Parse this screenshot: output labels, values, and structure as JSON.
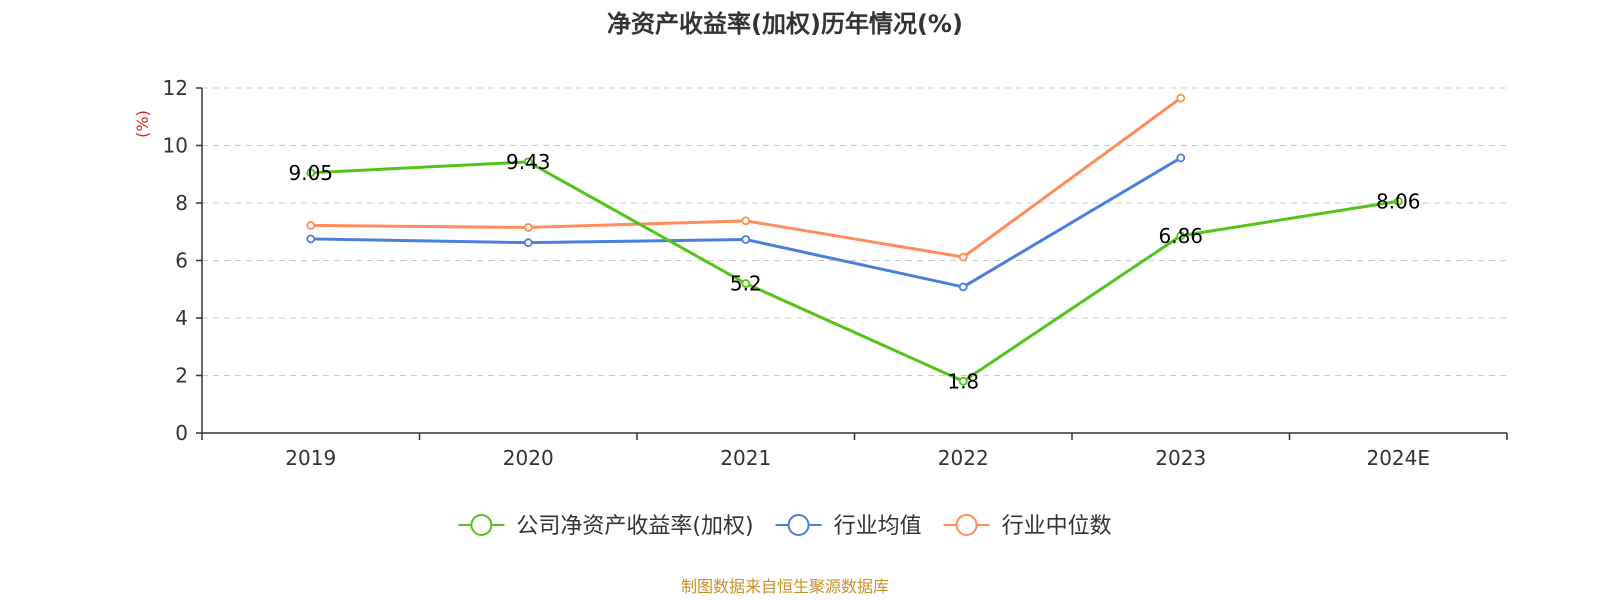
{
  "chart_data": {
    "type": "line",
    "title": "净资产收益率(加权)历年情况(%)",
    "ylabel": "(%)",
    "xlabel": "",
    "categories": [
      "2019",
      "2020",
      "2021",
      "2022",
      "2023",
      "2024E"
    ],
    "ylim": [
      0,
      12
    ],
    "yticks": [
      0,
      2,
      4,
      6,
      8,
      10,
      12
    ],
    "grid": true,
    "legend_position": "bottom",
    "series": [
      {
        "name": "公司净资产收益率(加权)",
        "color": "#52c41a",
        "values": [
          9.05,
          9.43,
          5.2,
          1.8,
          6.86,
          8.06
        ],
        "labels": [
          "9.05",
          "9.43",
          "5.2",
          "1.8",
          "6.86",
          "8.06"
        ]
      },
      {
        "name": "行业均值",
        "color": "#4a7fdf",
        "values": [
          6.75,
          6.62,
          6.73,
          5.08,
          9.57,
          null
        ]
      },
      {
        "name": "行业中位数",
        "color": "#ff8c5a",
        "values": [
          7.22,
          7.15,
          7.38,
          6.12,
          11.65,
          null
        ]
      }
    ]
  },
  "source_text": "制图数据来自恒生聚源数据库",
  "colors": {
    "source": "#c8902a",
    "ylabel": "#e02020",
    "axis": "#333333",
    "grid": "#cccccc"
  }
}
